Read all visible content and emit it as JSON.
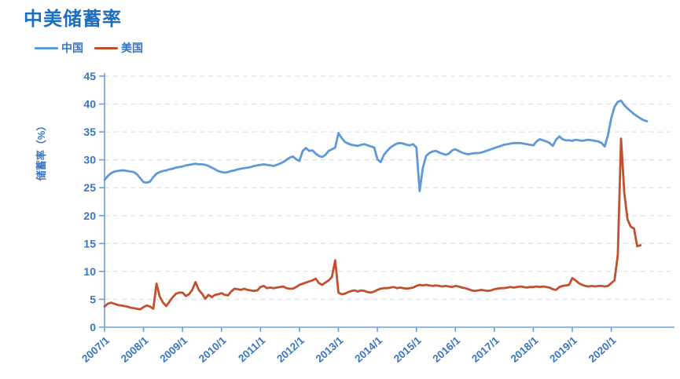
{
  "title": "中美储蓄率",
  "legend": [
    {
      "label": "中国",
      "color": "#5E9AD8"
    },
    {
      "label": "美国",
      "color": "#C1512E"
    }
  ],
  "colors": {
    "title": "#1C6FC0",
    "axis_labels": "#3A75C4",
    "axis_line": "#6FA0D6",
    "gridline": "#D9E4F3",
    "china_line": "#5E9AD8",
    "us_line": "#C1512E",
    "background": "#FFFFFF"
  },
  "chart_data": {
    "type": "line",
    "title": "中美储蓄率",
    "xlabel": "",
    "ylabel": "储蓄率（%）",
    "ylim": [
      0,
      45
    ],
    "y_ticks": [
      0,
      5,
      10,
      15,
      20,
      25,
      30,
      35,
      40,
      45
    ],
    "x_start": "2007/1",
    "x_frequency": "monthly",
    "x_tick_labels": [
      "2007/1",
      "2008/1",
      "2009/1",
      "2010/1",
      "2011/1",
      "2012/1",
      "2013/1",
      "2014/1",
      "2015/1",
      "2016/1",
      "2017/1",
      "2018/1",
      "2019/1",
      "2020/1"
    ],
    "grid": "horizontal-dashed",
    "legend_position": "top-left",
    "series": [
      {
        "name": "中国",
        "color": "#5E9AD8",
        "values": [
          26.4,
          27.1,
          27.6,
          27.9,
          28.0,
          28.1,
          28.1,
          28.0,
          27.9,
          27.8,
          27.4,
          26.7,
          26.0,
          25.9,
          26.1,
          26.9,
          27.5,
          27.8,
          28.0,
          28.1,
          28.3,
          28.4,
          28.6,
          28.7,
          28.8,
          29.0,
          29.1,
          29.2,
          29.3,
          29.2,
          29.2,
          29.1,
          28.9,
          28.6,
          28.3,
          28.0,
          27.8,
          27.7,
          27.8,
          28.0,
          28.1,
          28.3,
          28.4,
          28.5,
          28.6,
          28.7,
          28.9,
          29.0,
          29.1,
          29.2,
          29.1,
          29.0,
          28.9,
          29.1,
          29.3,
          29.6,
          30.0,
          30.4,
          30.6,
          30.1,
          29.8,
          31.6,
          32.1,
          31.6,
          31.7,
          31.1,
          30.7,
          30.5,
          30.9,
          31.6,
          31.9,
          32.2,
          34.8,
          33.9,
          33.2,
          32.9,
          32.7,
          32.6,
          32.5,
          32.7,
          32.8,
          32.6,
          32.4,
          32.2,
          30.1,
          29.6,
          30.9,
          31.6,
          32.2,
          32.6,
          32.9,
          33.0,
          32.9,
          32.7,
          32.6,
          32.8,
          32.2,
          24.4,
          28.6,
          30.7,
          31.2,
          31.5,
          31.6,
          31.3,
          31.1,
          30.9,
          31.1,
          31.7,
          31.9,
          31.6,
          31.3,
          31.1,
          31.0,
          31.1,
          31.2,
          31.2,
          31.3,
          31.5,
          31.7,
          31.9,
          32.1,
          32.3,
          32.5,
          32.7,
          32.8,
          32.9,
          33.0,
          33.0,
          33.0,
          32.9,
          32.8,
          32.7,
          32.6,
          33.3,
          33.7,
          33.5,
          33.3,
          33.0,
          32.5,
          33.6,
          34.2,
          33.7,
          33.5,
          33.5,
          33.4,
          33.6,
          33.5,
          33.4,
          33.5,
          33.6,
          33.5,
          33.4,
          33.3,
          33.0,
          32.4,
          34.5,
          37.5,
          39.5,
          40.4,
          40.6,
          39.8,
          39.2,
          38.7,
          38.2,
          37.8,
          37.4,
          37.1,
          36.9
        ]
      },
      {
        "name": "美国",
        "color": "#C1512E",
        "values": [
          3.7,
          4.2,
          4.4,
          4.2,
          4.0,
          3.9,
          3.8,
          3.7,
          3.5,
          3.4,
          3.3,
          3.2,
          3.6,
          3.9,
          3.7,
          3.3,
          7.8,
          5.5,
          4.4,
          3.8,
          4.6,
          5.4,
          6.0,
          6.2,
          6.2,
          5.6,
          5.9,
          6.7,
          8.1,
          6.7,
          6.0,
          5.1,
          5.8,
          5.4,
          5.8,
          5.9,
          6.1,
          5.8,
          5.7,
          6.4,
          6.9,
          6.8,
          6.7,
          6.9,
          6.7,
          6.6,
          6.5,
          6.6,
          7.2,
          7.4,
          7.0,
          7.1,
          7.0,
          7.1,
          7.2,
          7.3,
          7.0,
          6.9,
          6.9,
          7.2,
          7.6,
          7.8,
          8.0,
          8.2,
          8.4,
          8.7,
          7.9,
          7.6,
          8.0,
          8.4,
          9.0,
          12.0,
          6.2,
          5.9,
          6.0,
          6.3,
          6.5,
          6.6,
          6.4,
          6.6,
          6.5,
          6.3,
          6.2,
          6.4,
          6.7,
          6.9,
          7.0,
          7.0,
          7.1,
          7.2,
          7.0,
          7.1,
          7.0,
          6.9,
          7.0,
          7.1,
          7.4,
          7.6,
          7.5,
          7.6,
          7.5,
          7.4,
          7.5,
          7.4,
          7.3,
          7.4,
          7.3,
          7.2,
          7.4,
          7.3,
          7.1,
          7.0,
          6.8,
          6.6,
          6.5,
          6.6,
          6.7,
          6.6,
          6.5,
          6.6,
          6.8,
          6.9,
          7.0,
          7.0,
          7.1,
          7.2,
          7.1,
          7.2,
          7.3,
          7.2,
          7.1,
          7.2,
          7.2,
          7.3,
          7.2,
          7.3,
          7.2,
          7.1,
          6.8,
          6.7,
          7.2,
          7.4,
          7.5,
          7.6,
          8.8,
          8.4,
          7.9,
          7.6,
          7.4,
          7.3,
          7.4,
          7.3,
          7.4,
          7.4,
          7.3,
          7.4,
          7.9,
          8.4,
          13.0,
          33.8,
          24.1,
          19.3,
          18.0,
          17.7,
          14.5,
          14.7
        ]
      }
    ]
  }
}
